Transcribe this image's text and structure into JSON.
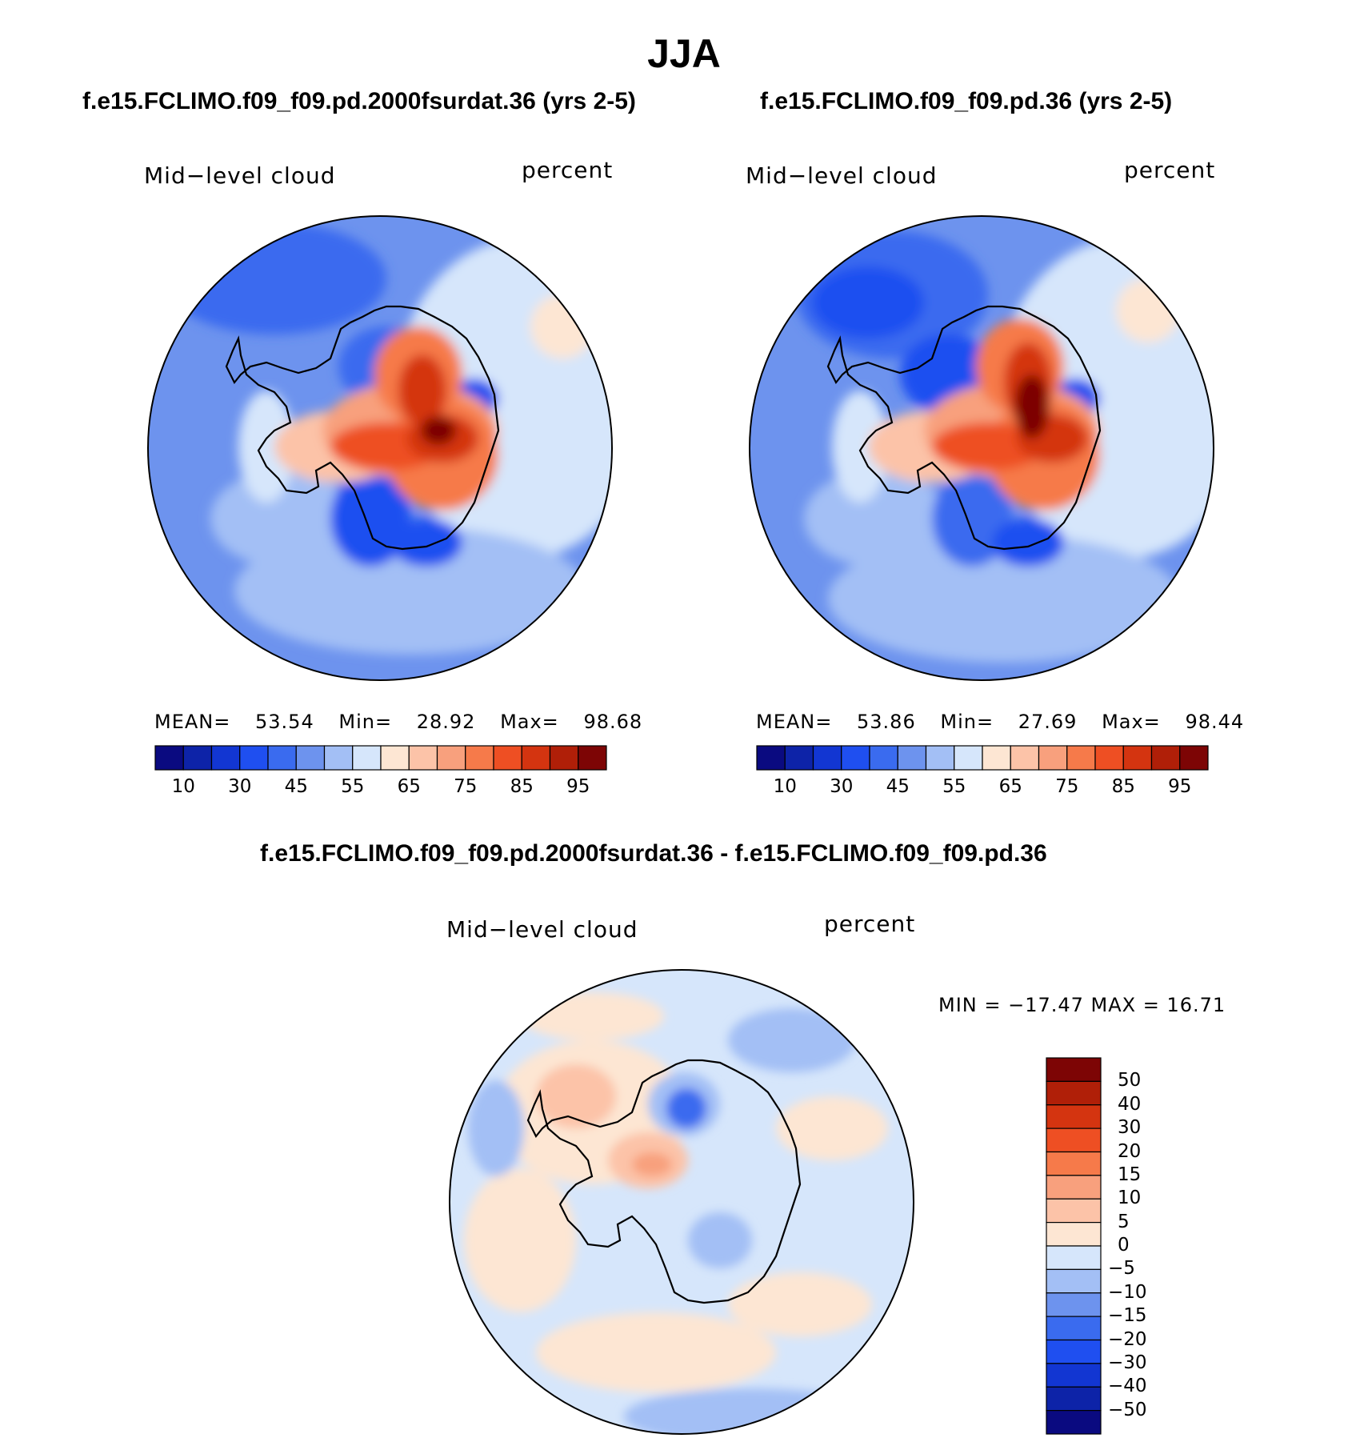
{
  "figure_title": "JJA",
  "panels": [
    {
      "subtitle": "f.e15.FCLIMO.f09_f09.pd.2000fsurdat.36 (yrs 2-5)",
      "variable_label": "Mid−level cloud",
      "units_label": "percent",
      "stats": {
        "mean_label": "MEAN=",
        "mean": "53.54",
        "min_label": "Min=",
        "min": "28.92",
        "max_label": "Max=",
        "max": "98.68"
      }
    },
    {
      "subtitle": "f.e15.FCLIMO.f09_f09.pd.36 (yrs 2-5)",
      "variable_label": "Mid−level cloud",
      "units_label": "percent",
      "stats": {
        "mean_label": "MEAN=",
        "mean": "53.86",
        "min_label": "Min=",
        "min": "27.69",
        "max_label": "Max=",
        "max": "98.44"
      }
    },
    {
      "subtitle": "f.e15.FCLIMO.f09_f09.pd.2000fsurdat.36 - f.e15.FCLIMO.f09_f09.pd.36",
      "variable_label": "Mid−level cloud",
      "units_label": "percent",
      "stats_text": "MIN = −17.47 MAX =   16.71"
    }
  ],
  "chart_data": [
    {
      "type": "heatmap",
      "projection": "south-polar-stereographic",
      "title": "f.e15.FCLIMO.f09_f09.pd.2000fsurdat.36 (yrs 2-5)",
      "variable": "Mid-level cloud",
      "units": "percent",
      "mean": 53.54,
      "min": 28.92,
      "max": 98.68,
      "colorbar": {
        "orientation": "horizontal",
        "levels": [
          10,
          20,
          30,
          40,
          45,
          50,
          55,
          60,
          65,
          70,
          75,
          80,
          85,
          90,
          95
        ],
        "tick_labels": [
          "10",
          "30",
          "45",
          "55",
          "65",
          "75",
          "85",
          "95"
        ],
        "colors": [
          "#0a0a80",
          "#0d23a8",
          "#1236d2",
          "#1f4ff0",
          "#3a6bef",
          "#6d93ee",
          "#a3bff5",
          "#d6e6fb",
          "#fde6d3",
          "#fcc3a8",
          "#f8a07d",
          "#f67a4a",
          "#ee4f23",
          "#d43410",
          "#b01f08",
          "#7d0505"
        ]
      }
    },
    {
      "type": "heatmap",
      "projection": "south-polar-stereographic",
      "title": "f.e15.FCLIMO.f09_f09.pd.36 (yrs 2-5)",
      "variable": "Mid-level cloud",
      "units": "percent",
      "mean": 53.86,
      "min": 27.69,
      "max": 98.44,
      "colorbar": {
        "orientation": "horizontal",
        "levels": [
          10,
          20,
          30,
          40,
          45,
          50,
          55,
          60,
          65,
          70,
          75,
          80,
          85,
          90,
          95
        ],
        "tick_labels": [
          "10",
          "30",
          "45",
          "55",
          "65",
          "75",
          "85",
          "95"
        ],
        "colors": [
          "#0a0a80",
          "#0d23a8",
          "#1236d2",
          "#1f4ff0",
          "#3a6bef",
          "#6d93ee",
          "#a3bff5",
          "#d6e6fb",
          "#fde6d3",
          "#fcc3a8",
          "#f8a07d",
          "#f67a4a",
          "#ee4f23",
          "#d43410",
          "#b01f08",
          "#7d0505"
        ]
      }
    },
    {
      "type": "heatmap",
      "projection": "south-polar-stereographic",
      "title": "f.e15.FCLIMO.f09_f09.pd.2000fsurdat.36 - f.e15.FCLIMO.f09_f09.pd.36",
      "variable": "Mid-level cloud",
      "units": "percent",
      "min": -17.47,
      "max": 16.71,
      "colorbar": {
        "orientation": "vertical",
        "levels": [
          -50,
          -40,
          -30,
          -20,
          -15,
          -10,
          -5,
          0,
          5,
          10,
          15,
          20,
          30,
          40,
          50
        ],
        "tick_labels": [
          "50",
          "40",
          "30",
          "20",
          "15",
          "10",
          "5",
          "0",
          "−5",
          "−10",
          "−15",
          "−20",
          "−30",
          "−40",
          "−50"
        ],
        "colors": [
          "#7d0505",
          "#b01f08",
          "#d43410",
          "#ee4f23",
          "#f67a4a",
          "#f8a07d",
          "#fcc3a8",
          "#fde6d3",
          "#d6e6fb",
          "#a3bff5",
          "#6d93ee",
          "#3a6bef",
          "#1f4ff0",
          "#1236d2",
          "#0d23a8",
          "#0a0a80"
        ]
      }
    }
  ]
}
